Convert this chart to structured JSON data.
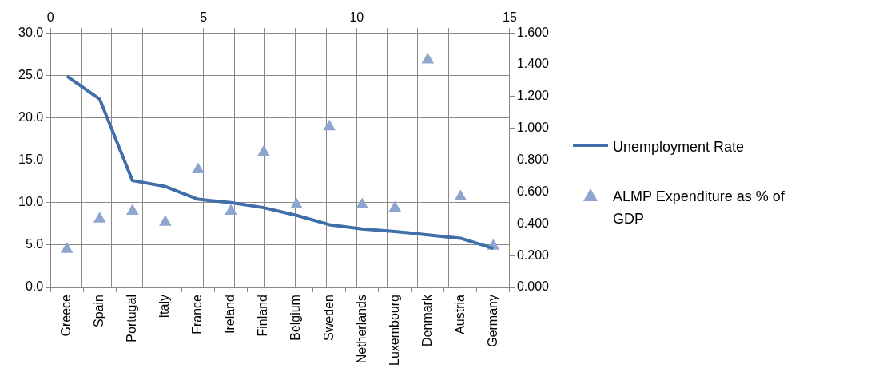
{
  "chart_data": {
    "type": "line",
    "categories": [
      "Greece",
      "Spain",
      "Portugal",
      "Italy",
      "France",
      "Ireland",
      "Finland",
      "Belgium",
      "Sweden",
      "Netherlands",
      "Luxembourg",
      "Denmark",
      "Austria",
      "Germany"
    ],
    "series": [
      {
        "name": "Unemployment Rate",
        "color": "#3f6ea8",
        "values": [
          24.9,
          22.2,
          12.6,
          11.9,
          10.4,
          10.0,
          9.4,
          8.5,
          7.4,
          6.9,
          6.6,
          6.2,
          5.8,
          4.6
        ]
      },
      {
        "name": "ALMP Expenditure as % of GDP",
        "type": "scatter",
        "axis": "y2",
        "marker": "triangle",
        "color": "#8ea5cf",
        "values": [
          0.24,
          0.43,
          0.48,
          0.41,
          0.74,
          0.48,
          0.85,
          0.52,
          1.01,
          0.52,
          0.5,
          1.43,
          0.57,
          0.26
        ]
      }
    ],
    "ylim": [
      0,
      30
    ],
    "yticks": [
      {
        "value": 0,
        "label": "0.0"
      },
      {
        "value": 5,
        "label": "5.0"
      },
      {
        "value": 10,
        "label": "10.0"
      },
      {
        "value": 15,
        "label": "15.0"
      },
      {
        "value": 20,
        "label": "20.0"
      },
      {
        "value": 25,
        "label": "25.0"
      },
      {
        "value": 30,
        "label": "30.0"
      }
    ],
    "y2lim": [
      0,
      1.6
    ],
    "y2ticks": [
      {
        "value": 0,
        "label": "0.000"
      },
      {
        "value": 0.2,
        "label": "0.200"
      },
      {
        "value": 0.4,
        "label": "0.400"
      },
      {
        "value": 0.6,
        "label": "0.600"
      },
      {
        "value": 0.8,
        "label": "0.800"
      },
      {
        "value": 1,
        "label": "1.000"
      },
      {
        "value": 1.2,
        "label": "1.200"
      },
      {
        "value": 1.4,
        "label": "1.400"
      },
      {
        "value": 1.6,
        "label": "1.600"
      }
    ],
    "x2lim": [
      0,
      15
    ],
    "x2ticks": [
      0,
      {
        "value": 1,
        "label": null
      },
      {
        "value": 2,
        "label": null
      },
      {
        "value": 3,
        "label": null
      },
      {
        "value": 4,
        "label": null
      },
      5,
      {
        "value": 6,
        "label": null
      },
      {
        "value": 7,
        "label": null
      },
      {
        "value": 8,
        "label": null
      },
      {
        "value": 9,
        "label": null
      },
      10,
      {
        "value": 11,
        "label": null
      },
      {
        "value": 12,
        "label": null
      },
      {
        "value": 13,
        "label": null
      },
      {
        "value": 14,
        "label": null
      },
      15
    ],
    "grid": true,
    "legend": "right",
    "line_style": "solid",
    "marker": "none"
  }
}
